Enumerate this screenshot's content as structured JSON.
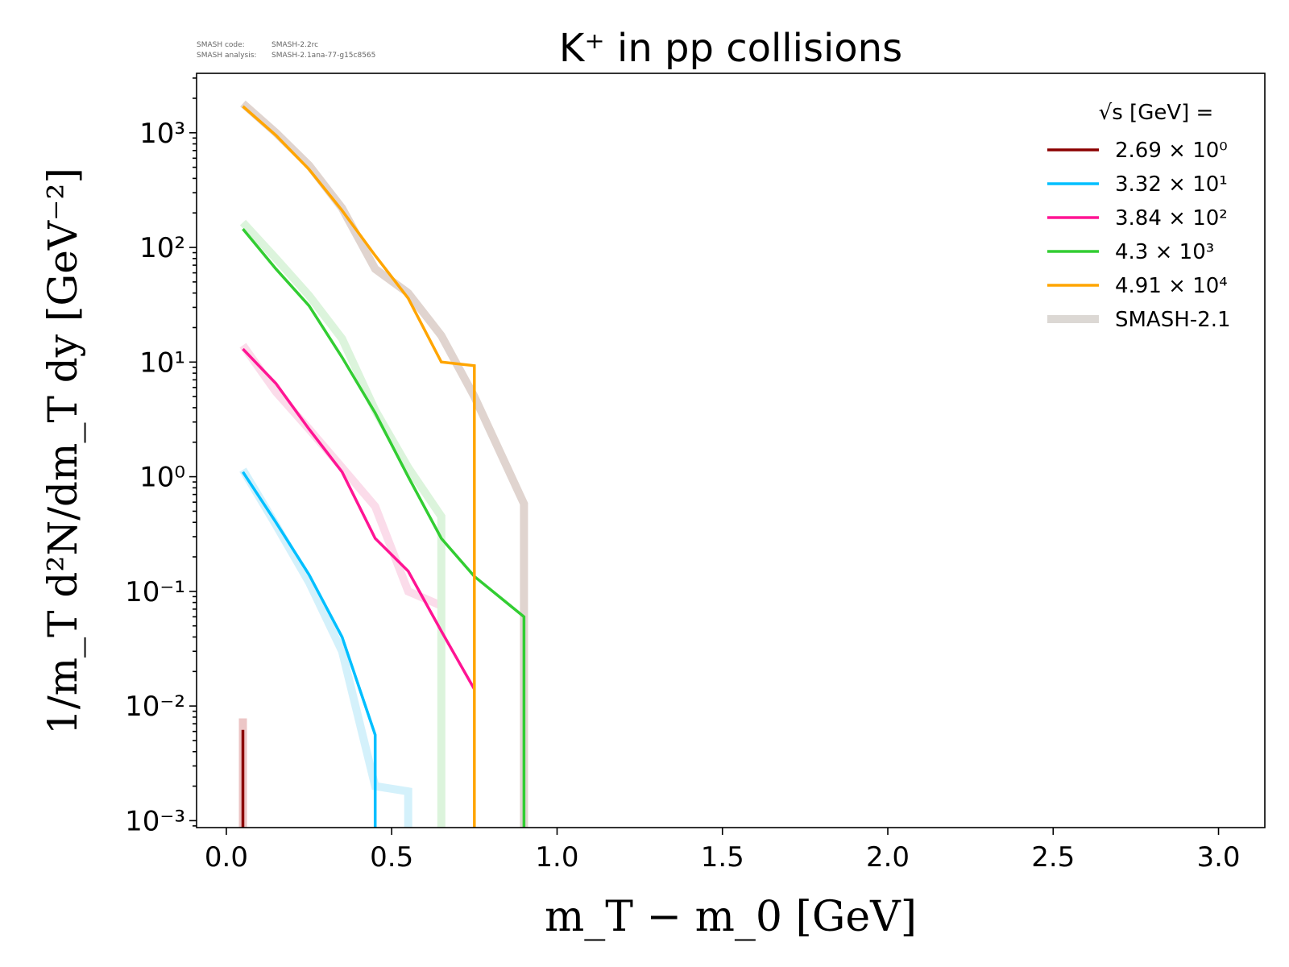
{
  "meta": {
    "code_label": "SMASH code:",
    "code_value": "SMASH-2.2rc",
    "analysis_label": "SMASH analysis:",
    "analysis_value": "SMASH-2.1ana-77-g15c8565"
  },
  "chart_data": {
    "type": "line",
    "title": "K⁺ in pp collisions",
    "xlabel": "m_T − m_0 [GeV]",
    "ylabel": "1/m_T d²N/dm_T dy [GeV⁻²]",
    "xlim": [
      -0.09,
      3.14
    ],
    "ylim": [
      0.00087,
      3300
    ],
    "yscale": "log",
    "grid": false,
    "legend_title": "√s [GeV] =",
    "legend_position": "top-right",
    "x_ticks": [
      "0.0",
      "0.5",
      "1.0",
      "1.5",
      "2.0",
      "2.5",
      "3.0"
    ],
    "y_ticks": [
      "10³",
      "10²",
      "10¹",
      "10⁰",
      "10⁻¹",
      "10⁻²",
      "10⁻³"
    ],
    "series": [
      {
        "name": "2.69 × 10⁰",
        "color": "#8b0000",
        "x": [
          0.05,
          0.05
        ],
        "y": [
          0.00087,
          0.0062
        ]
      },
      {
        "name": "3.32 × 10¹",
        "color": "#00bfff",
        "x": [
          0.05,
          0.15,
          0.25,
          0.35,
          0.45,
          0.45
        ],
        "y": [
          1.1,
          0.4,
          0.14,
          0.04,
          0.0056,
          0.00087
        ]
      },
      {
        "name": "3.84 × 10²",
        "color": "#ff1493",
        "x": [
          0.05,
          0.15,
          0.25,
          0.35,
          0.45,
          0.55,
          0.65,
          0.75
        ],
        "y": [
          13,
          6.5,
          2.6,
          1.1,
          0.29,
          0.15,
          0.045,
          0.014
        ]
      },
      {
        "name": "4.3 × 10³",
        "color": "#32cd32",
        "x": [
          0.05,
          0.15,
          0.25,
          0.35,
          0.45,
          0.55,
          0.65,
          0.75,
          0.9,
          0.9
        ],
        "y": [
          145,
          65,
          31,
          11,
          3.6,
          1.0,
          0.29,
          0.135,
          0.06,
          0.00087
        ]
      },
      {
        "name": "4.91 × 10⁴",
        "color": "#ffa500",
        "x": [
          0.05,
          0.15,
          0.25,
          0.35,
          0.45,
          0.55,
          0.65,
          0.75,
          0.75
        ],
        "y": [
          1700,
          950,
          480,
          210,
          85,
          36,
          10,
          9.3,
          0.00087
        ]
      }
    ],
    "reference": {
      "name": "SMASH-2.1",
      "legend_color": "#dcd8d4",
      "series": [
        {
          "color": "#ecc6c6",
          "x": [
            0.05,
            0.05
          ],
          "y": [
            0.00087,
            0.0078
          ]
        },
        {
          "color": "#d4f1fb",
          "x": [
            0.05,
            0.15,
            0.25,
            0.35,
            0.45,
            0.55,
            0.55
          ],
          "y": [
            1.15,
            0.38,
            0.12,
            0.03,
            0.002,
            0.0018,
            0.00087
          ]
        },
        {
          "color": "#fbdcea",
          "x": [
            0.05,
            0.15,
            0.25,
            0.35,
            0.45,
            0.55,
            0.65
          ],
          "y": [
            14,
            5.5,
            2.6,
            1.2,
            0.55,
            0.1,
            0.075
          ]
        },
        {
          "color": "#dcf4dc",
          "x": [
            0.05,
            0.15,
            0.25,
            0.35,
            0.45,
            0.55,
            0.65,
            0.65
          ],
          "y": [
            165,
            80,
            38,
            16,
            3.8,
            1.2,
            0.45,
            0.00087
          ]
        },
        {
          "color": "#e0d4cf",
          "x": [
            0.05,
            0.15,
            0.25,
            0.35,
            0.45,
            0.55,
            0.65,
            0.75,
            0.9,
            0.9
          ],
          "y": [
            1800,
            1000,
            520,
            220,
            65,
            40,
            17,
            5,
            0.58,
            0.00087
          ]
        }
      ]
    }
  }
}
